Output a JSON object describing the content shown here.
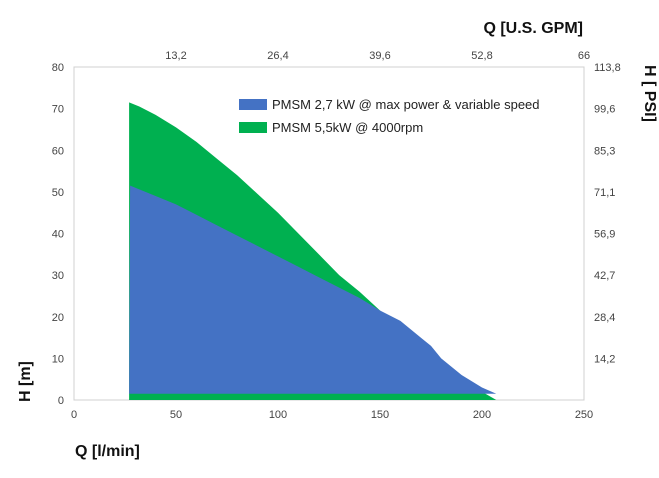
{
  "chart_data": {
    "type": "area",
    "xlabel": "Q [l/min]",
    "ylabel": "H [m]",
    "x2label": "Q [U.S. GPM]",
    "y2label": "H [ PSI]",
    "xlim": [
      0,
      250
    ],
    "ylim": [
      0,
      80
    ],
    "x_ticks": [
      "0",
      "50",
      "100",
      "150",
      "200",
      "250"
    ],
    "y_ticks": [
      "0",
      "10",
      "20",
      "30",
      "40",
      "50",
      "60",
      "70",
      "80"
    ],
    "x2_ticks": [
      "13,2",
      "26,4",
      "39,6",
      "52,8",
      "66"
    ],
    "y2_ticks": [
      "14,2",
      "28,4",
      "42,7",
      "56,9",
      "71,1",
      "85,3",
      "99,6",
      "113,8"
    ],
    "grid": false,
    "legend_position": "top-right",
    "series": [
      {
        "name": "PMSM 5,5kW @ 4000rpm",
        "color": "#00b050",
        "x": [
          27,
          32,
          40,
          50,
          60,
          70,
          80,
          90,
          100,
          110,
          120,
          130,
          140,
          150,
          160,
          170,
          180,
          190,
          200,
          207
        ],
        "y": [
          71.5,
          70.5,
          68.5,
          65.5,
          62,
          58,
          54,
          49.5,
          45,
          40,
          35,
          30,
          26,
          21.5,
          17,
          12,
          8,
          5,
          2,
          0
        ]
      },
      {
        "name": "PMSM 2,7 kW @ max power & variable speed",
        "color": "#4472c4",
        "x": [
          27,
          27.5,
          40,
          50,
          60,
          70,
          80,
          90,
          100,
          110,
          120,
          130,
          140,
          150,
          160,
          165,
          170,
          175,
          180,
          190,
          200,
          207
        ],
        "y": [
          1.5,
          51.5,
          49,
          47,
          44.5,
          42,
          39.5,
          37,
          34.5,
          32,
          29.5,
          27,
          24.5,
          21.5,
          19,
          17,
          15,
          13,
          10,
          6,
          3,
          1.5
        ]
      }
    ]
  }
}
